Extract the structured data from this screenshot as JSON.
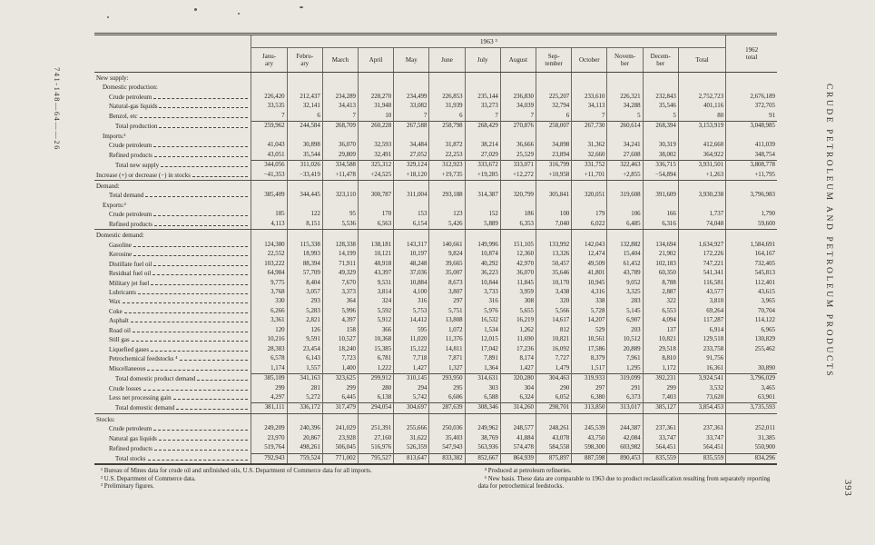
{
  "page": {
    "margin_code": "741-148—64——26",
    "side_title": "CRUDE PETROLEUM AND PETROLEUM PRODUCTS",
    "page_number": "393"
  },
  "table": {
    "year_header": "1963 ³",
    "col_headers": [
      "Janu-\nary",
      "Febru-\nary",
      "March",
      "April",
      "May",
      "June",
      "July",
      "August",
      "Sep-\ntember",
      "October",
      "Novem-\nber",
      "Decem-\nber",
      "Total"
    ],
    "last_col_header": "1962\ntotal",
    "rows": [
      {
        "label": "New supply:",
        "indent": 0,
        "style": "section",
        "values": null
      },
      {
        "label": "Domestic production:",
        "indent": 7,
        "style": "sub",
        "values": null
      },
      {
        "label": "Crude petroleum",
        "indent": 14,
        "values": [
          "226,420",
          "212,437",
          "234,289",
          "228,270",
          "234,499",
          "226,853",
          "235,144",
          "236,830",
          "225,207",
          "233,610",
          "226,321",
          "232,843",
          "2,752,723",
          "2,676,189"
        ]
      },
      {
        "label": "Natural-gas liquids",
        "indent": 14,
        "values": [
          "33,535",
          "32,141",
          "34,413",
          "31,948",
          "33,082",
          "31,939",
          "33,273",
          "34,039",
          "32,794",
          "34,113",
          "34,288",
          "35,546",
          "401,116",
          "372,705"
        ]
      },
      {
        "label": "Benzol, etc",
        "indent": 14,
        "values": [
          "7",
          "6",
          "7",
          "10",
          "7",
          "6",
          "7",
          "7",
          "6",
          "7",
          "5",
          "5",
          "80",
          "91"
        ]
      },
      {
        "label": "Total production",
        "indent": 21,
        "rule": true,
        "values": [
          "259,962",
          "244,584",
          "268,709",
          "260,228",
          "267,588",
          "258,798",
          "268,429",
          "270,876",
          "258,007",
          "267,730",
          "260,614",
          "268,394",
          "3,153,919",
          "3,048,985"
        ]
      },
      {
        "label": "Imports:¹",
        "indent": 7,
        "style": "sub",
        "values": null
      },
      {
        "label": "Crude petroleum",
        "indent": 14,
        "values": [
          "41,043",
          "30,898",
          "36,070",
          "32,593",
          "34,484",
          "31,872",
          "38,214",
          "36,666",
          "34,898",
          "31,362",
          "34,241",
          "30,319",
          "412,660",
          "411,039"
        ]
      },
      {
        "label": "Refined products",
        "indent": 14,
        "values": [
          "43,051",
          "35,544",
          "29,809",
          "32,491",
          "27,052",
          "22,253",
          "27,029",
          "25,529",
          "23,894",
          "32,660",
          "27,608",
          "38,002",
          "364,922",
          "348,754"
        ]
      },
      {
        "label": "Total new supply",
        "indent": 21,
        "rule": true,
        "values": [
          "344,056",
          "311,026",
          "334,588",
          "325,312",
          "329,124",
          "312,923",
          "333,672",
          "333,071",
          "316,799",
          "331,752",
          "322,463",
          "336,715",
          "3,931,501",
          "3,808,778"
        ]
      },
      {
        "label": "Increase (+) or decrease (−) in stocks",
        "indent": 0,
        "sep": true,
        "values": [
          "−41,353",
          "−33,419",
          "+11,478",
          "+24,525",
          "+18,120",
          "+19,735",
          "+19,285",
          "+12,272",
          "+10,958",
          "+11,701",
          "+2,855",
          "−54,894",
          "+1,263",
          "+11,795"
        ]
      },
      {
        "label": "Demand:",
        "indent": 0,
        "style": "section",
        "values": null
      },
      {
        "label": "Total demand",
        "indent": 14,
        "values": [
          "385,409",
          "344,445",
          "323,110",
          "300,787",
          "311,004",
          "293,188",
          "314,387",
          "320,799",
          "305,841",
          "320,051",
          "319,608",
          "391,609",
          "3,930,238",
          "3,796,983"
        ]
      },
      {
        "label": "Exports:²",
        "indent": 7,
        "style": "sub",
        "values": null
      },
      {
        "label": "Crude petroleum",
        "indent": 14,
        "values": [
          "185",
          "122",
          "95",
          "170",
          "153",
          "123",
          "152",
          "186",
          "100",
          "179",
          "106",
          "166",
          "1,737",
          "1,790"
        ]
      },
      {
        "label": "Refined products",
        "indent": 14,
        "sep": true,
        "values": [
          "4,113",
          "8,151",
          "5,536",
          "6,563",
          "6,154",
          "5,426",
          "5,889",
          "6,353",
          "7,040",
          "6,022",
          "6,485",
          "6,316",
          "74,048",
          "59,600"
        ]
      },
      {
        "label": "Domestic demand:",
        "indent": 0,
        "style": "section",
        "values": null
      },
      {
        "label": "Gasoline",
        "indent": 14,
        "values": [
          "124,380",
          "115,338",
          "128,338",
          "138,181",
          "143,317",
          "140,661",
          "149,996",
          "151,105",
          "133,992",
          "142,043",
          "132,882",
          "134,694",
          "1,634,927",
          "1,584,691"
        ]
      },
      {
        "label": "Kerosine",
        "indent": 14,
        "values": [
          "22,552",
          "18,993",
          "14,199",
          "10,121",
          "10,197",
          "9,824",
          "10,874",
          "12,360",
          "13,326",
          "12,474",
          "15,404",
          "21,902",
          "172,226",
          "164,167"
        ]
      },
      {
        "label": "Distillate fuel oil",
        "indent": 14,
        "values": [
          "103,222",
          "88,394",
          "71,911",
          "48,918",
          "48,248",
          "39,665",
          "40,292",
          "42,970",
          "50,457",
          "49,509",
          "61,452",
          "102,183",
          "747,221",
          "732,405"
        ]
      },
      {
        "label": "Residual fuel oil",
        "indent": 14,
        "values": [
          "64,984",
          "57,709",
          "49,329",
          "43,397",
          "37,036",
          "35,007",
          "36,223",
          "36,070",
          "35,646",
          "41,801",
          "43,789",
          "60,350",
          "541,341",
          "545,813"
        ]
      },
      {
        "label": "Military jet fuel",
        "indent": 14,
        "values": [
          "9,775",
          "8,404",
          "7,670",
          "9,531",
          "10,884",
          "8,673",
          "10,844",
          "11,845",
          "10,170",
          "10,945",
          "9,052",
          "8,788",
          "116,581",
          "112,401"
        ]
      },
      {
        "label": "Lubricants",
        "indent": 14,
        "values": [
          "3,768",
          "3,057",
          "3,373",
          "3,814",
          "4,100",
          "3,807",
          "3,733",
          "3,959",
          "3,438",
          "4,316",
          "3,325",
          "2,887",
          "43,577",
          "43,615"
        ]
      },
      {
        "label": "Wax",
        "indent": 14,
        "values": [
          "330",
          "293",
          "364",
          "324",
          "316",
          "297",
          "316",
          "308",
          "320",
          "338",
          "283",
          "322",
          "3,810",
          "3,965"
        ]
      },
      {
        "label": "Coke",
        "indent": 14,
        "values": [
          "6,266",
          "5,283",
          "5,996",
          "5,592",
          "5,753",
          "5,751",
          "5,976",
          "5,655",
          "5,566",
          "5,728",
          "5,145",
          "6,553",
          "69,264",
          "70,704"
        ]
      },
      {
        "label": "Asphalt",
        "indent": 14,
        "values": [
          "3,361",
          "2,821",
          "4,397",
          "5,912",
          "14,412",
          "13,808",
          "16,532",
          "16,219",
          "14,617",
          "14,207",
          "6,907",
          "4,094",
          "117,287",
          "114,122"
        ]
      },
      {
        "label": "Road oil",
        "indent": 14,
        "values": [
          "120",
          "126",
          "158",
          "366",
          "595",
          "1,072",
          "1,534",
          "1,262",
          "812",
          "529",
          "203",
          "137",
          "6,914",
          "6,965"
        ]
      },
      {
        "label": "Still gas",
        "indent": 14,
        "values": [
          "10,216",
          "9,591",
          "10,527",
          "10,368",
          "11,020",
          "11,376",
          "12,015",
          "11,690",
          "10,821",
          "10,561",
          "10,512",
          "10,821",
          "129,518",
          "130,829"
        ]
      },
      {
        "label": "Liquefied gases",
        "indent": 14,
        "values": [
          "28,383",
          "23,454",
          "18,240",
          "15,385",
          "15,122",
          "14,811",
          "17,042",
          "17,236",
          "16,092",
          "17,586",
          "20,889",
          "29,518",
          "233,758",
          "255,462"
        ]
      },
      {
        "label": "Petrochemical feedstocks ⁴",
        "indent": 14,
        "values": [
          "6,578",
          "6,143",
          "7,723",
          "6,781",
          "7,718",
          "7,871",
          "7,891",
          "8,174",
          "7,727",
          "8,379",
          "7,961",
          "8,810",
          "91,756",
          ""
        ]
      },
      {
        "label": "Miscellaneous",
        "indent": 14,
        "values": [
          "1,174",
          "1,557",
          "1,400",
          "1,222",
          "1,427",
          "1,327",
          "1,364",
          "1,427",
          "1,479",
          "1,517",
          "1,295",
          "1,172",
          "16,361",
          "30,890"
        ]
      },
      {
        "label": "Total domestic product demand",
        "indent": 21,
        "rule": true,
        "values": [
          "385,109",
          "341,163",
          "323,625",
          "299,912",
          "310,145",
          "293,950",
          "314,631",
          "320,280",
          "304,463",
          "319,933",
          "319,099",
          "392,231",
          "3,924,541",
          "3,796,029"
        ]
      },
      {
        "label": "Crude losses",
        "indent": 14,
        "values": [
          "299",
          "281",
          "299",
          "280",
          "294",
          "295",
          "303",
          "304",
          "290",
          "297",
          "291",
          "299",
          "3,532",
          "3,465"
        ]
      },
      {
        "label": "Less net processing gain",
        "indent": 14,
        "values": [
          "4,297",
          "5,272",
          "6,445",
          "6,138",
          "5,742",
          "6,606",
          "6,588",
          "6,324",
          "6,052",
          "6,380",
          "6,373",
          "7,403",
          "73,620",
          "63,901"
        ]
      },
      {
        "label": "Total domestic demand",
        "indent": 21,
        "rule": true,
        "sep": true,
        "values": [
          "381,111",
          "336,172",
          "317,479",
          "294,054",
          "304,697",
          "287,639",
          "308,346",
          "314,260",
          "298,701",
          "313,850",
          "313,017",
          "385,127",
          "3,854,453",
          "3,735,593"
        ]
      },
      {
        "label": "Stocks:",
        "indent": 0,
        "style": "section",
        "values": null
      },
      {
        "label": "Crude petroleum",
        "indent": 14,
        "values": [
          "249,209",
          "240,396",
          "241,029",
          "251,391",
          "255,666",
          "250,036",
          "249,962",
          "248,577",
          "248,261",
          "245,539",
          "244,387",
          "237,361",
          "237,361",
          "252,011"
        ]
      },
      {
        "label": "Natural gas liquids",
        "indent": 14,
        "values": [
          "23,970",
          "20,867",
          "23,928",
          "27,160",
          "31,622",
          "35,403",
          "38,769",
          "41,884",
          "43,078",
          "43,750",
          "42,084",
          "33,747",
          "33,747",
          "31,385"
        ]
      },
      {
        "label": "Refined products",
        "indent": 14,
        "values": [
          "519,764",
          "498,261",
          "506,045",
          "516,976",
          "526,359",
          "547,943",
          "563,936",
          "574,478",
          "584,558",
          "598,300",
          "603,982",
          "564,451",
          "564,451",
          "550,900"
        ]
      },
      {
        "label": "Total stocks",
        "indent": 21,
        "rule": true,
        "values": [
          "792,943",
          "759,524",
          "771,002",
          "795,527",
          "813,647",
          "833,382",
          "852,667",
          "864,939",
          "875,897",
          "887,598",
          "890,453",
          "835,559",
          "835,559",
          "834,296"
        ]
      }
    ]
  },
  "footnotes": {
    "left": [
      "¹ Bureau of Mines data for crude oil and unfinished oils, U.S. Department of Commerce data for all imports.",
      "² U.S. Department of Commerce data.",
      "³ Preliminary figures."
    ],
    "right": [
      "⁴ Produced at petroleum refineries.",
      "⁵ New basis. These data are comparable to 1963 due to product reclassification resulting from separately reporting data for petrochemical feedstocks."
    ]
  }
}
